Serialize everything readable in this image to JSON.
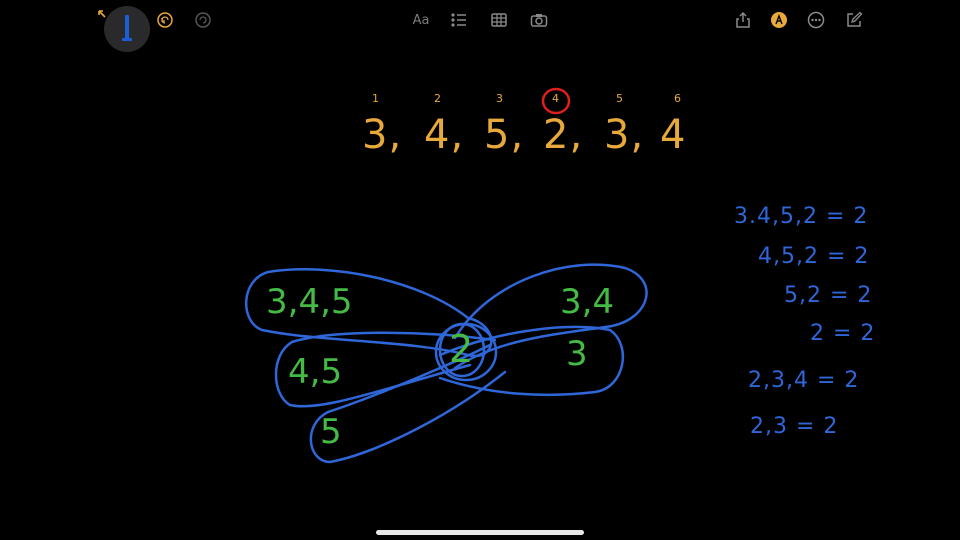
{
  "toolbar": {
    "icons": [
      "collapse-arrows-icon",
      "pencil-icon",
      "undo-icon",
      "redo-icon",
      "text-format-icon",
      "checklist-icon",
      "table-icon",
      "camera-icon",
      "share-icon",
      "markup-icon",
      "more-icon",
      "compose-icon"
    ],
    "font_button_label": "Aa"
  },
  "canvas": {
    "index_labels": [
      "1",
      "2",
      "3",
      "4",
      "5",
      "6"
    ],
    "highlighted_index": "4",
    "sequence": [
      "3,",
      "4,",
      "5,",
      "2,",
      "3,",
      "4"
    ],
    "blobs": {
      "top_left": "3,4,5",
      "mid_left": "4,5",
      "bottom": "5",
      "center": "2",
      "top_right": "3,4",
      "mid_right": "3"
    },
    "equations": [
      "3.4,5,2 = 2",
      "4,5,2 = 2",
      "5,2 = 2",
      "2 = 2",
      "2,3,4 = 2",
      "2,3 = 2"
    ]
  },
  "colors": {
    "sequence": "#e7a93c",
    "blob_text": "#44bb44",
    "blob_stroke": "#2f66d8",
    "equations": "#2f66d8",
    "highlight": "#e0201c"
  }
}
